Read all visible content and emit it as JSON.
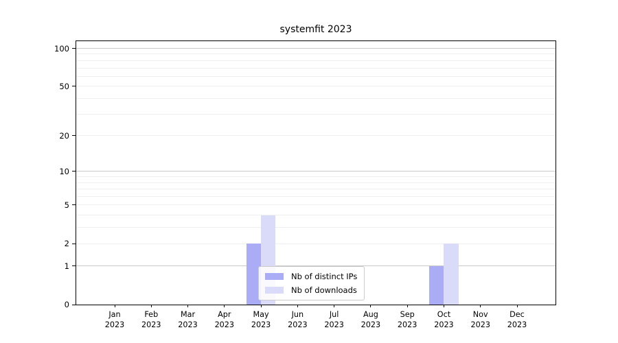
{
  "chart_data": {
    "type": "bar",
    "title": "systemfit 2023",
    "categories": [
      "Jan",
      "Feb",
      "Mar",
      "Apr",
      "May",
      "Jun",
      "Jul",
      "Aug",
      "Sep",
      "Oct",
      "Nov",
      "Dec"
    ],
    "year": "2023",
    "series": [
      {
        "name": "Nb of distinct IPs",
        "color": "#abacf6",
        "values": [
          0,
          0,
          0,
          0,
          2,
          0,
          0,
          0,
          0,
          1,
          0,
          0
        ]
      },
      {
        "name": "Nb of downloads",
        "color": "#dadaf9",
        "values": [
          0,
          0,
          0,
          0,
          4,
          0,
          0,
          0,
          0,
          2,
          0,
          0
        ]
      }
    ],
    "yscale": "log1p",
    "ylim": [
      0,
      114
    ],
    "yticks": [
      0,
      1,
      2,
      5,
      10,
      20,
      50,
      100
    ],
    "gridlines_major": [
      1,
      10,
      100
    ],
    "gridlines_minor": [
      2,
      3,
      4,
      5,
      6,
      7,
      8,
      9,
      20,
      30,
      40,
      50,
      60,
      70,
      80,
      90
    ],
    "grid": true,
    "legend_position": "lower-center"
  },
  "colors": {
    "bar_distinct_ips": "#abacf6",
    "bar_downloads": "#dadaf9",
    "grid_major": "#c9c9c9",
    "grid_minor": "#efefef",
    "axis": "#000000"
  }
}
